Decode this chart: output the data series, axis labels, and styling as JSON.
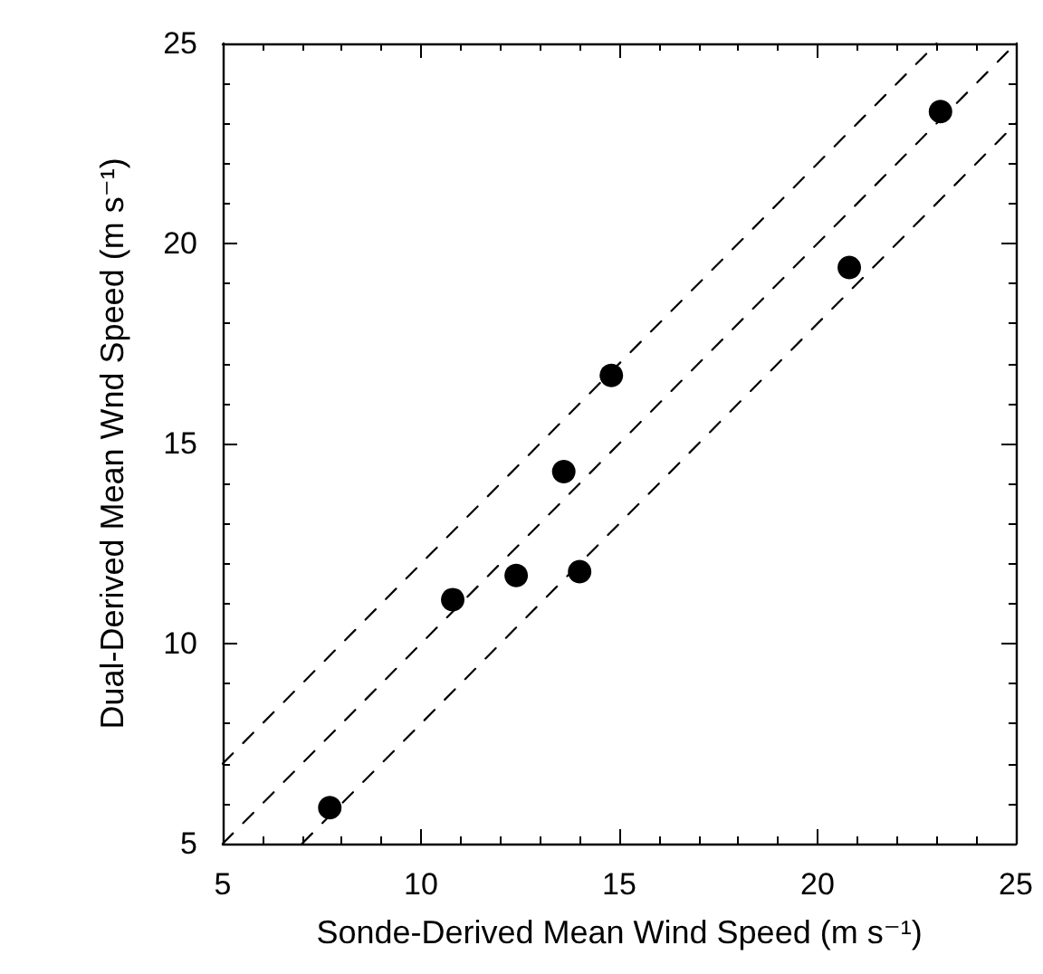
{
  "chart_data": {
    "type": "scatter",
    "xlabel": "Sonde-Derived Mean Wind Speed (m s⁻¹)",
    "ylabel": "Dual-Derived Mean Wnd Speed (m s⁻¹)",
    "xlim": [
      5,
      25
    ],
    "ylim": [
      5,
      25
    ],
    "xticks": [
      5,
      10,
      15,
      20,
      25
    ],
    "yticks": [
      5,
      10,
      15,
      20,
      25
    ],
    "grid": false,
    "marker": "circle",
    "series": [
      {
        "color": "#000000",
        "x": [
          7.7,
          10.8,
          12.4,
          13.6,
          14.0,
          14.8,
          20.8,
          23.1
        ],
        "values": [
          5.9,
          11.1,
          11.7,
          14.3,
          11.8,
          16.7,
          19.4,
          23.3
        ]
      },
      {
        "type": "line",
        "color": "#000000",
        "line_style": "dashed",
        "marker": "none",
        "x": [
          5,
          23
        ],
        "values": [
          7,
          25
        ]
      },
      {
        "type": "line",
        "color": "#000000",
        "line_style": "dashed",
        "marker": "none",
        "x": [
          5,
          25
        ],
        "values": [
          5,
          25
        ]
      },
      {
        "type": "line",
        "color": "#000000",
        "line_style": "dashed",
        "marker": "none",
        "x": [
          7,
          25
        ],
        "values": [
          5,
          23
        ]
      }
    ]
  }
}
